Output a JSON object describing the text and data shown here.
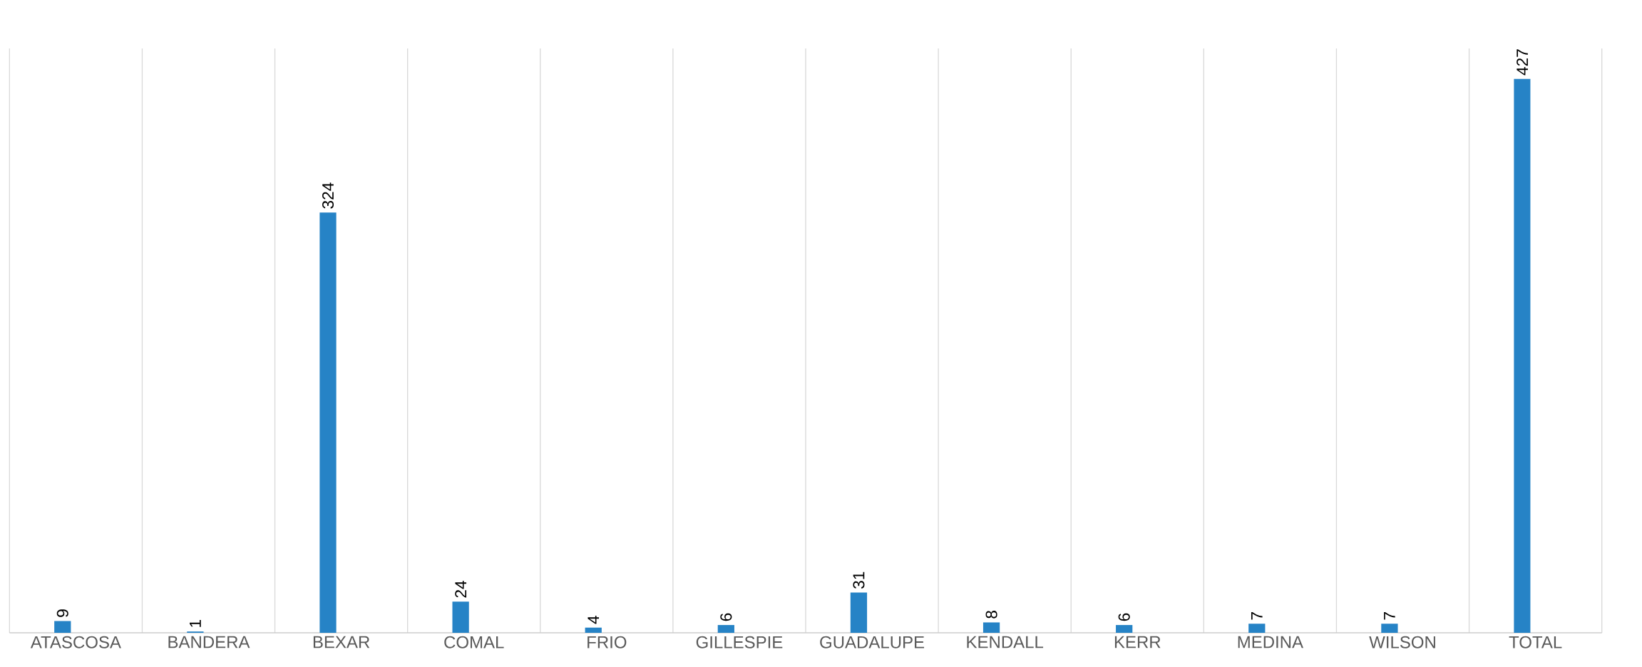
{
  "chart_data": {
    "type": "bar",
    "categories": [
      "ATASCOSA",
      "BANDERA",
      "BEXAR",
      "COMAL",
      "FRIO",
      "GILLESPIE",
      "GUADALUPE",
      "KENDALL",
      "KERR",
      "MEDINA",
      "WILSON",
      "TOTAL"
    ],
    "values": [
      9,
      1,
      324,
      24,
      4,
      6,
      31,
      8,
      6,
      7,
      7,
      427
    ],
    "color": "#2683c6",
    "data_labels": true,
    "grid": "x"
  }
}
